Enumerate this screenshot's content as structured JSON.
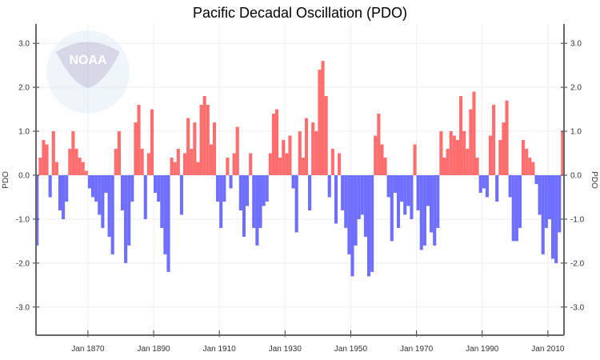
{
  "chart_data": {
    "type": "bar",
    "title": "Pacific Decadal Oscillation (PDO)",
    "ylabel_left": "PDO",
    "ylabel_right": "PDO",
    "xlabel": "",
    "x_start_year": 1854,
    "xlim": [
      1854.2,
      2014.9
    ],
    "ylim": [
      -3.64,
      3.44
    ],
    "x_ticks": [
      "Jan 1870",
      "Jan 1890",
      "Jan 1910",
      "Jan 1930",
      "Jan 1950",
      "Jan 1970",
      "Jan 1990",
      "Jan 2010"
    ],
    "x_tick_years": [
      1870,
      1890,
      1910,
      1930,
      1950,
      1970,
      1990,
      2010
    ],
    "y_ticks": [
      "3.0",
      "2.0",
      "1.0",
      "0.0",
      "-1.0",
      "-2.0",
      "-3.0"
    ],
    "y_tick_values": [
      3,
      2,
      1,
      0,
      -1,
      -2,
      -3
    ],
    "grid": true,
    "colors": {
      "positive": "#ff6e6e",
      "negative": "#6e6eff"
    },
    "watermark": "NOAA - National Oceanic and Atmospheric Administration - U.S. Department of Commerce",
    "values": [
      -1.6,
      0.4,
      0.8,
      0.7,
      -0.5,
      1.0,
      0.3,
      -0.8,
      -1.0,
      -0.6,
      0.6,
      1.0,
      0.6,
      0.4,
      0.3,
      0.1,
      -0.3,
      -0.5,
      -0.6,
      -0.9,
      -1.2,
      -0.4,
      -1.4,
      -1.8,
      0.6,
      1.0,
      -0.8,
      -2.0,
      -1.6,
      -0.6,
      1.2,
      1.6,
      0.6,
      -1.0,
      0.5,
      1.5,
      -0.4,
      -0.6,
      -1.2,
      -1.8,
      -2.2,
      0.4,
      0.3,
      0.6,
      -0.9,
      0.5,
      1.3,
      0.6,
      1.2,
      0.3,
      1.6,
      1.8,
      1.6,
      0.7,
      1.2,
      -0.6,
      -1.2,
      -0.6,
      0.4,
      -0.3,
      0.5,
      1.1,
      -0.8,
      -1.4,
      -0.7,
      0.5,
      -1.2,
      -1.6,
      -1.2,
      -0.7,
      -0.6,
      0.5,
      1.4,
      1.5,
      0.4,
      0.8,
      0.5,
      0.9,
      -0.3,
      -1.3,
      1.0,
      0.4,
      1.3,
      -0.8,
      1.2,
      1.0,
      2.4,
      2.6,
      1.8,
      -0.5,
      0.6,
      -1.1,
      0.5,
      -0.8,
      -1.2,
      -1.8,
      -2.3,
      -1.6,
      -1.0,
      -0.9,
      -1.4,
      -2.3,
      -2.2,
      0.9,
      1.4,
      0.7,
      0.4,
      -0.5,
      -1.5,
      -0.4,
      -1.2,
      -0.6,
      -0.9,
      -0.7,
      -1.0,
      0.7,
      -0.8,
      -1.7,
      -1.6,
      -0.7,
      -1.3,
      -1.6,
      -1.2,
      1.0,
      0.4,
      0.6,
      1.0,
      0.9,
      0.8,
      1.8,
      1.0,
      0.6,
      1.5,
      1.9,
      0.4,
      -0.4,
      -0.3,
      -0.5,
      0.9,
      1.6,
      -0.6,
      0.8,
      1.2,
      1.7,
      -0.5,
      -1.5,
      -1.5,
      -1.2,
      0.8,
      0.6,
      0.4,
      0.3,
      -0.2,
      -0.9,
      -1.8,
      -1.2,
      -1.0,
      -1.9,
      -2.0,
      -1.3,
      1.0
    ]
  }
}
